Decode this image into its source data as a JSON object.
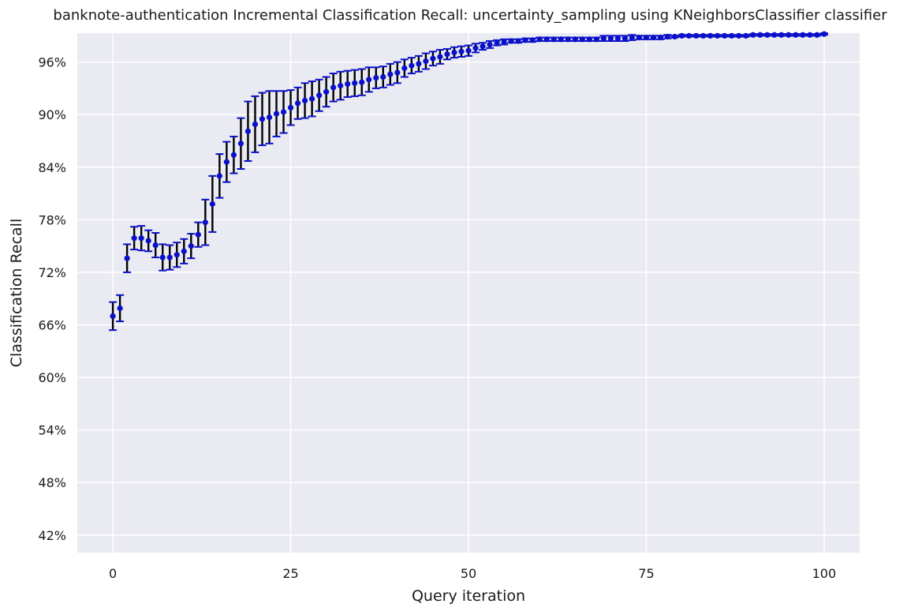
{
  "chart_data": {
    "type": "scatter",
    "title": "banknote-authentication Incremental Classification Recall: uncertainty_sampling using KNeighborsClassifier classifier",
    "xlabel": "Query iteration",
    "ylabel": "Classification Recall",
    "xlim": [
      -5,
      105
    ],
    "ylim": [
      0.4,
      0.993
    ],
    "x_ticks": [
      0,
      25,
      50,
      75,
      100
    ],
    "x_tick_labels": [
      "0",
      "25",
      "50",
      "75",
      "100"
    ],
    "y_ticks": [
      0.42,
      0.48,
      0.54,
      0.6,
      0.66,
      0.72,
      0.78,
      0.84,
      0.9,
      0.96
    ],
    "y_tick_labels": [
      "42%",
      "48%",
      "54%",
      "60%",
      "66%",
      "72%",
      "78%",
      "84%",
      "90%",
      "96%"
    ],
    "grid": true,
    "colors": {
      "background": "#eaeaf2",
      "grid": "#ffffff",
      "point": "#0a10c8",
      "errorbar": "#000000",
      "cap": "#0a10c8"
    },
    "series": [
      {
        "x": [
          0,
          1,
          2,
          3,
          4,
          5,
          6,
          7,
          8,
          9,
          10,
          11,
          12,
          13,
          14,
          15,
          16,
          17,
          18,
          19,
          20,
          21,
          22,
          23,
          24,
          25,
          26,
          27,
          28,
          29,
          30,
          31,
          32,
          33,
          34,
          35,
          36,
          37,
          38,
          39,
          40,
          41,
          42,
          43,
          44,
          45,
          46,
          47,
          48,
          49,
          50,
          51,
          52,
          53,
          54,
          55,
          56,
          57,
          58,
          59,
          60,
          61,
          62,
          63,
          64,
          65,
          66,
          67,
          68,
          69,
          70,
          71,
          72,
          73,
          74,
          75,
          76,
          77,
          78,
          79,
          80,
          81,
          82,
          83,
          84,
          85,
          86,
          87,
          88,
          89,
          90,
          91,
          92,
          93,
          94,
          95,
          96,
          97,
          98,
          99,
          100
        ],
        "y": [
          0.67,
          0.679,
          0.736,
          0.759,
          0.759,
          0.756,
          0.751,
          0.737,
          0.737,
          0.74,
          0.744,
          0.75,
          0.763,
          0.777,
          0.798,
          0.83,
          0.846,
          0.854,
          0.867,
          0.881,
          0.889,
          0.895,
          0.897,
          0.901,
          0.903,
          0.908,
          0.913,
          0.916,
          0.918,
          0.922,
          0.926,
          0.931,
          0.933,
          0.935,
          0.936,
          0.937,
          0.94,
          0.942,
          0.943,
          0.946,
          0.948,
          0.953,
          0.956,
          0.958,
          0.961,
          0.964,
          0.966,
          0.969,
          0.971,
          0.972,
          0.973,
          0.976,
          0.978,
          0.98,
          0.982,
          0.983,
          0.984,
          0.984,
          0.985,
          0.985,
          0.986,
          0.986,
          0.986,
          0.986,
          0.986,
          0.986,
          0.986,
          0.986,
          0.986,
          0.987,
          0.987,
          0.987,
          0.987,
          0.988,
          0.988,
          0.988,
          0.988,
          0.988,
          0.989,
          0.989,
          0.99,
          0.99,
          0.99,
          0.99,
          0.99,
          0.99,
          0.99,
          0.99,
          0.99,
          0.99,
          0.991,
          0.991,
          0.991,
          0.991,
          0.991,
          0.991,
          0.991,
          0.991,
          0.991,
          0.991,
          0.992
        ],
        "error": [
          0.016,
          0.015,
          0.016,
          0.013,
          0.014,
          0.012,
          0.014,
          0.015,
          0.014,
          0.014,
          0.014,
          0.014,
          0.014,
          0.026,
          0.032,
          0.025,
          0.023,
          0.021,
          0.029,
          0.034,
          0.032,
          0.03,
          0.03,
          0.026,
          0.024,
          0.02,
          0.018,
          0.02,
          0.02,
          0.018,
          0.017,
          0.016,
          0.016,
          0.015,
          0.015,
          0.015,
          0.014,
          0.012,
          0.012,
          0.012,
          0.012,
          0.01,
          0.009,
          0.009,
          0.009,
          0.008,
          0.008,
          0.006,
          0.006,
          0.006,
          0.006,
          0.005,
          0.004,
          0.004,
          0.003,
          0.003,
          0.002,
          0.002,
          0.002,
          0.002,
          0.002,
          0.002,
          0.002,
          0.002,
          0.002,
          0.002,
          0.002,
          0.002,
          0.002,
          0.003,
          0.003,
          0.003,
          0.003,
          0.003,
          0.002,
          0.002,
          0.002,
          0.002,
          0.002,
          0.001,
          0.001,
          0.001,
          0.001,
          0.001,
          0.001,
          0.001,
          0.001,
          0.001,
          0.001,
          0.001,
          0.001,
          0.001,
          0.001,
          0.001,
          0.001,
          0.001,
          0.001,
          0.001,
          0.001,
          0.001,
          0.001
        ]
      }
    ]
  }
}
